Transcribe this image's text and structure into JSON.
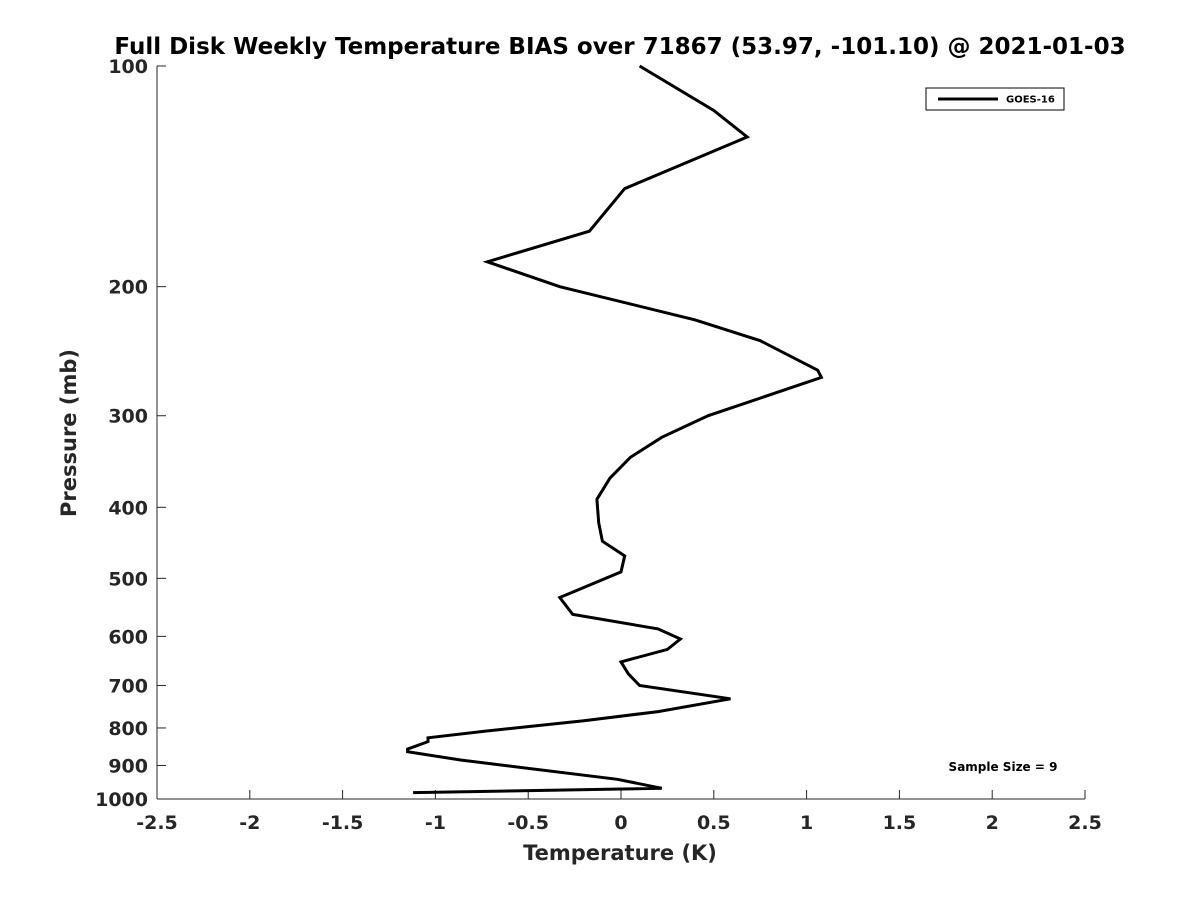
{
  "chart_data": {
    "type": "line",
    "title": "Full Disk Weekly Temperature BIAS over 71867 (53.97, -101.10) @ 2021-01-03",
    "xlabel": "Temperature (K)",
    "ylabel": "Pressure (mb)",
    "xlim": [
      -2.5,
      2.5
    ],
    "ylim": [
      100,
      1000
    ],
    "y_scale": "log",
    "y_reversed": true,
    "x_ticks": [
      -2.5,
      -2,
      -1.5,
      -1,
      -0.5,
      0,
      0.5,
      1,
      1.5,
      2,
      2.5
    ],
    "x_tick_labels": [
      "-2.5",
      "-2",
      "-1.5",
      "-1",
      "-0.5",
      "0",
      "0.5",
      "1",
      "1.5",
      "2",
      "2.5"
    ],
    "y_ticks": [
      100,
      200,
      300,
      400,
      500,
      600,
      700,
      800,
      900,
      1000
    ],
    "y_tick_labels": [
      "100",
      "200",
      "300",
      "400",
      "500",
      "600",
      "700",
      "800",
      "900",
      "1000"
    ],
    "grid": false,
    "legend": {
      "position": "top-right",
      "entries": [
        "GOES-16"
      ]
    },
    "annotation": "Sample Size = 9",
    "color": "#000000",
    "series": [
      {
        "name": "GOES-16",
        "x": [
          0.1,
          0.5,
          0.68,
          0.02,
          -0.17,
          -0.72,
          -0.33,
          0.4,
          0.75,
          1.06,
          1.08,
          0.47,
          0.22,
          0.05,
          -0.06,
          -0.13,
          -0.12,
          -0.1,
          0.02,
          0.0,
          -0.22,
          -0.33,
          -0.26,
          0.2,
          0.32,
          0.25,
          0.0,
          0.04,
          0.1,
          0.59,
          0.2,
          -0.2,
          -0.73,
          -1.04,
          -1.04,
          -1.15,
          -1.15,
          -0.86,
          -0.02,
          0.22,
          -1.12
        ],
        "y": [
          100,
          115,
          125,
          147,
          168,
          185,
          200,
          222,
          237,
          260,
          266,
          300,
          321,
          342,
          365,
          390,
          420,
          445,
          466,
          490,
          517,
          531,
          560,
          586,
          605,
          625,
          650,
          675,
          700,
          730,
          760,
          782,
          808,
          825,
          835,
          855,
          862,
          885,
          940,
          967,
          980
        ]
      }
    ]
  }
}
